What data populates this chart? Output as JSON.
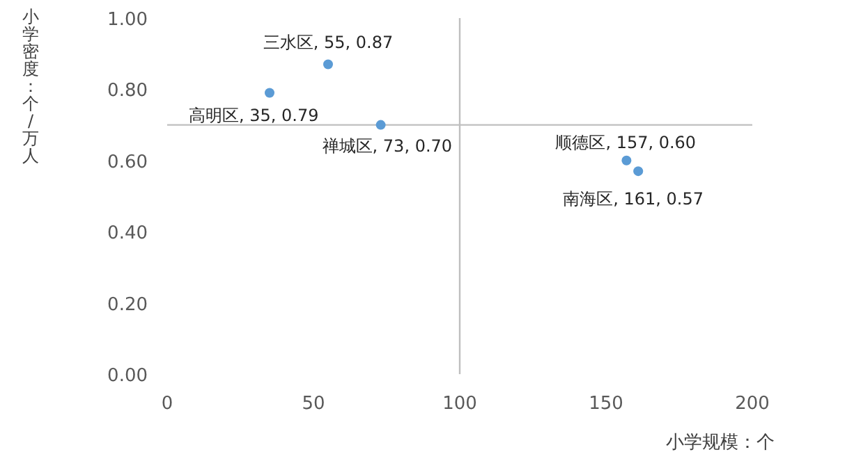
{
  "chart_data": {
    "type": "scatter",
    "xlabel": "小学规模：个",
    "ylabel": "小学密度：个/万人",
    "x": [
      35,
      55,
      73,
      157,
      161
    ],
    "values": [
      0.79,
      0.87,
      0.7,
      0.6,
      0.57
    ],
    "value_labels": [
      "高明区, 35, 0.79",
      "三水区, 55, 0.87",
      "禅城区, 73, 0.70",
      "顺德区, 157, 0.60",
      "南海区, 161, 0.57"
    ],
    "color": "#5b9bd5",
    "marker": "circle",
    "xlim": [
      0,
      200
    ],
    "xticks": [
      0,
      50,
      100,
      150,
      200
    ],
    "ylim": [
      0,
      1
    ],
    "yticks": [
      {
        "value": 0,
        "label": "0.00"
      },
      {
        "value": 0.2,
        "label": "0.20"
      },
      {
        "value": 0.4,
        "label": "0.40"
      },
      {
        "value": 0.6,
        "label": "0.60"
      },
      {
        "value": 0.8,
        "label": "0.80"
      },
      {
        "value": 1,
        "label": "1.00"
      }
    ],
    "ref_lines": [
      {
        "axis": "x",
        "value": 100,
        "color": "#bfbfbf"
      },
      {
        "axis": "y",
        "value": 0.7,
        "color": "#bfbfbf"
      }
    ],
    "grid": false
  }
}
